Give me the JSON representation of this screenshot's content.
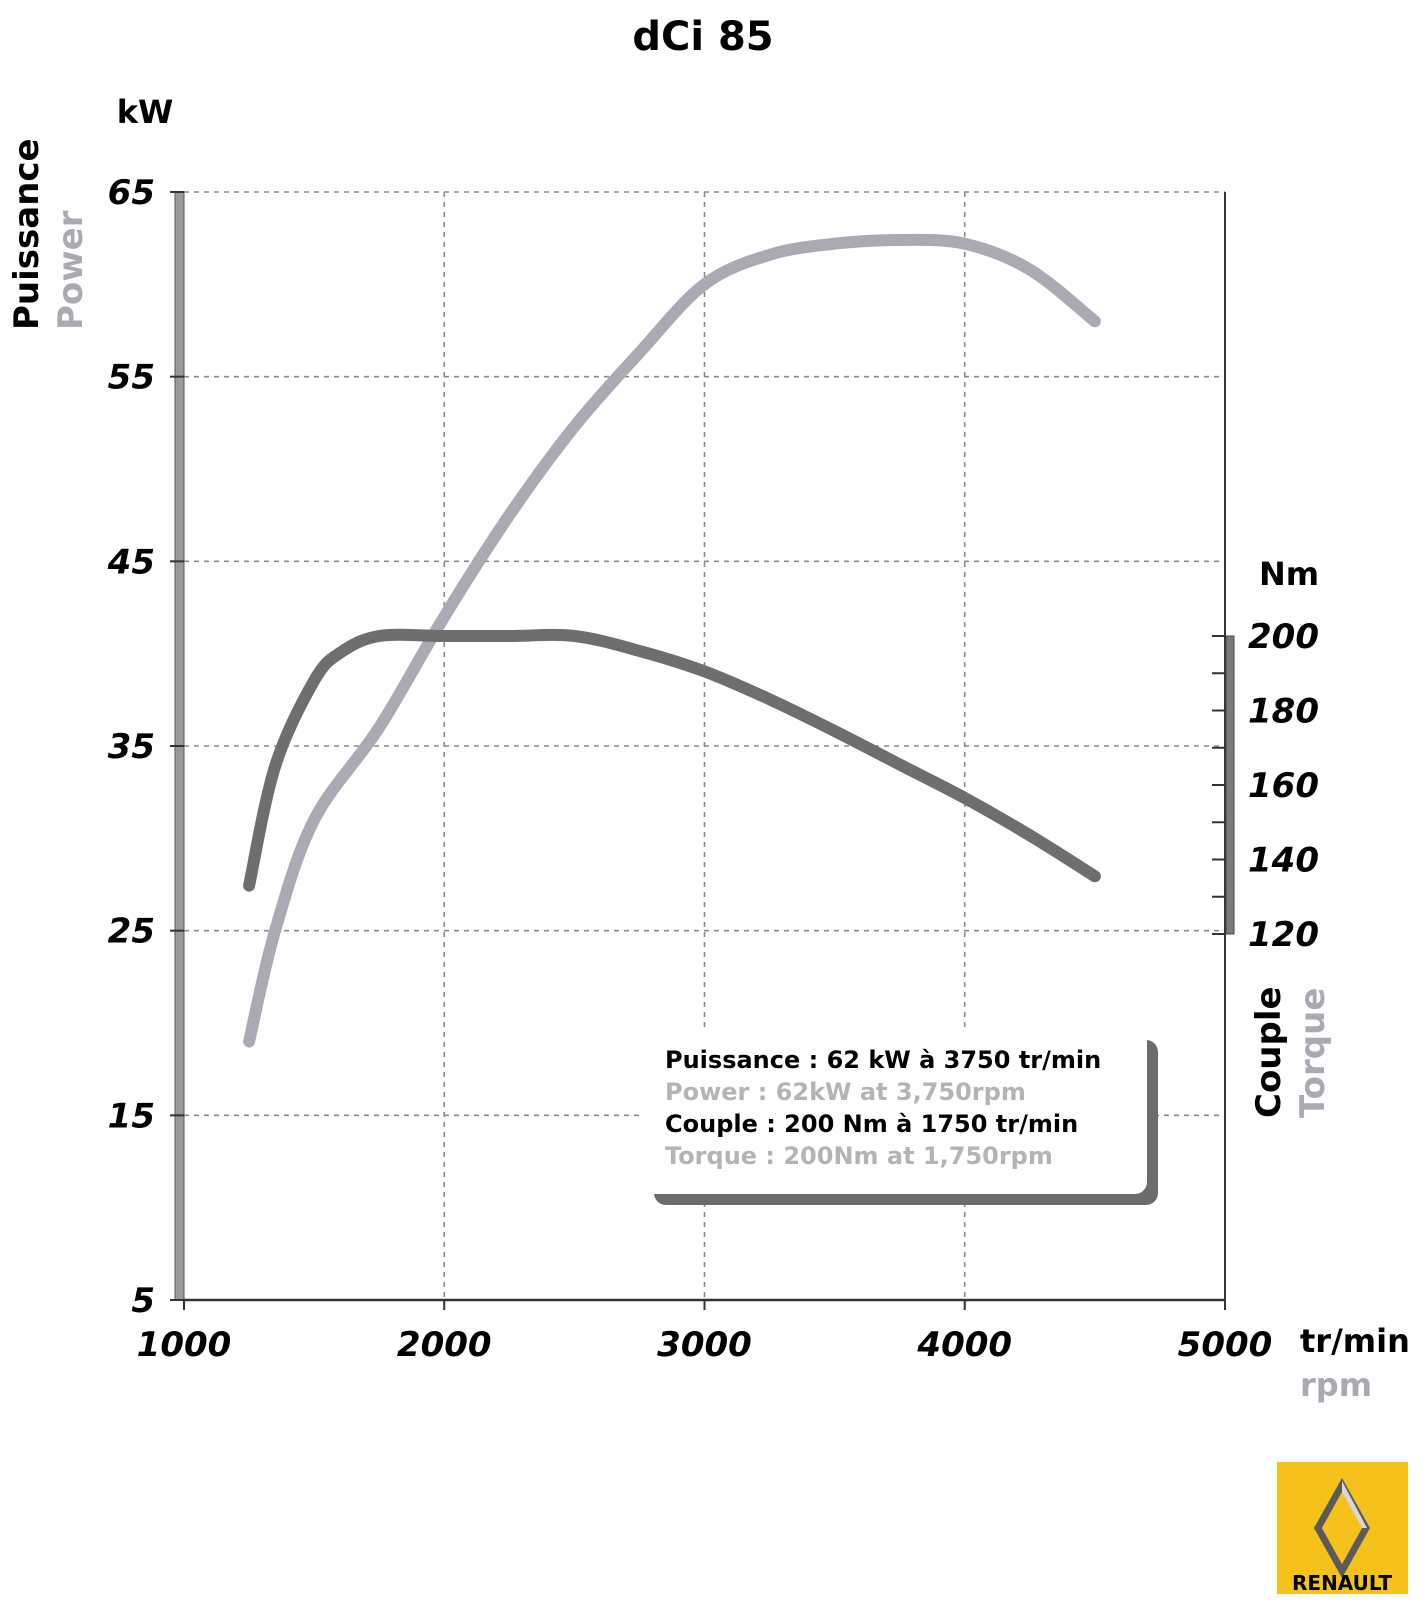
{
  "chart_data": {
    "type": "line",
    "title": "dCi 85",
    "x_unit_top": "tr/min",
    "x_unit_bottom": "rpm",
    "left_unit": "kW",
    "left_label_fr": "Puissance",
    "left_label_en": "Power",
    "right_unit": "Nm",
    "right_label_fr": "Couple",
    "right_label_en": "Torque",
    "xlim": [
      1000,
      5000
    ],
    "x_ticks": [
      "1000",
      "2000",
      "3000",
      "4000",
      "5000"
    ],
    "ylim_left": [
      5,
      65
    ],
    "y_ticks_left": [
      "65",
      "55",
      "45",
      "35",
      "25",
      "15",
      "5"
    ],
    "ylim_right": [
      120,
      200
    ],
    "y_ticks_right": [
      "200",
      "180",
      "160",
      "140",
      "120"
    ],
    "series": [
      {
        "name": "Power",
        "axis": "left",
        "color": "#aaaab4",
        "points": [
          [
            1250,
            19
          ],
          [
            1350,
            25
          ],
          [
            1500,
            31
          ],
          [
            1750,
            36
          ],
          [
            2000,
            42
          ],
          [
            2250,
            47.5
          ],
          [
            2500,
            52.3
          ],
          [
            2750,
            56.3
          ],
          [
            3000,
            60
          ],
          [
            3250,
            61.6
          ],
          [
            3500,
            62.2
          ],
          [
            3750,
            62.4
          ],
          [
            4000,
            62.2
          ],
          [
            4250,
            60.8
          ],
          [
            4500,
            58
          ]
        ]
      },
      {
        "name": "Torque",
        "axis": "right",
        "color": "#6e6e6e",
        "points": [
          [
            1250,
            133
          ],
          [
            1350,
            165
          ],
          [
            1500,
            188
          ],
          [
            1600,
            195.5
          ],
          [
            1750,
            200
          ],
          [
            2000,
            200
          ],
          [
            2250,
            200
          ],
          [
            2500,
            200
          ],
          [
            2750,
            196
          ],
          [
            3000,
            190.5
          ],
          [
            3250,
            183
          ],
          [
            3500,
            174.5
          ],
          [
            3750,
            165.5
          ],
          [
            4000,
            156.5
          ],
          [
            4250,
            146.5
          ],
          [
            4500,
            135.5
          ]
        ]
      }
    ]
  },
  "info_box": {
    "line1": "Puissance : 62 kW à 3750 tr/min",
    "line2": "Power : 62kW at 3,750rpm",
    "line3": "Couple : 200 Nm à 1750 tr/min",
    "line4": "Torque : 200Nm at 1,750rpm"
  },
  "logo": {
    "brand": "RENAULT",
    "background_color": "#f5c21b"
  }
}
